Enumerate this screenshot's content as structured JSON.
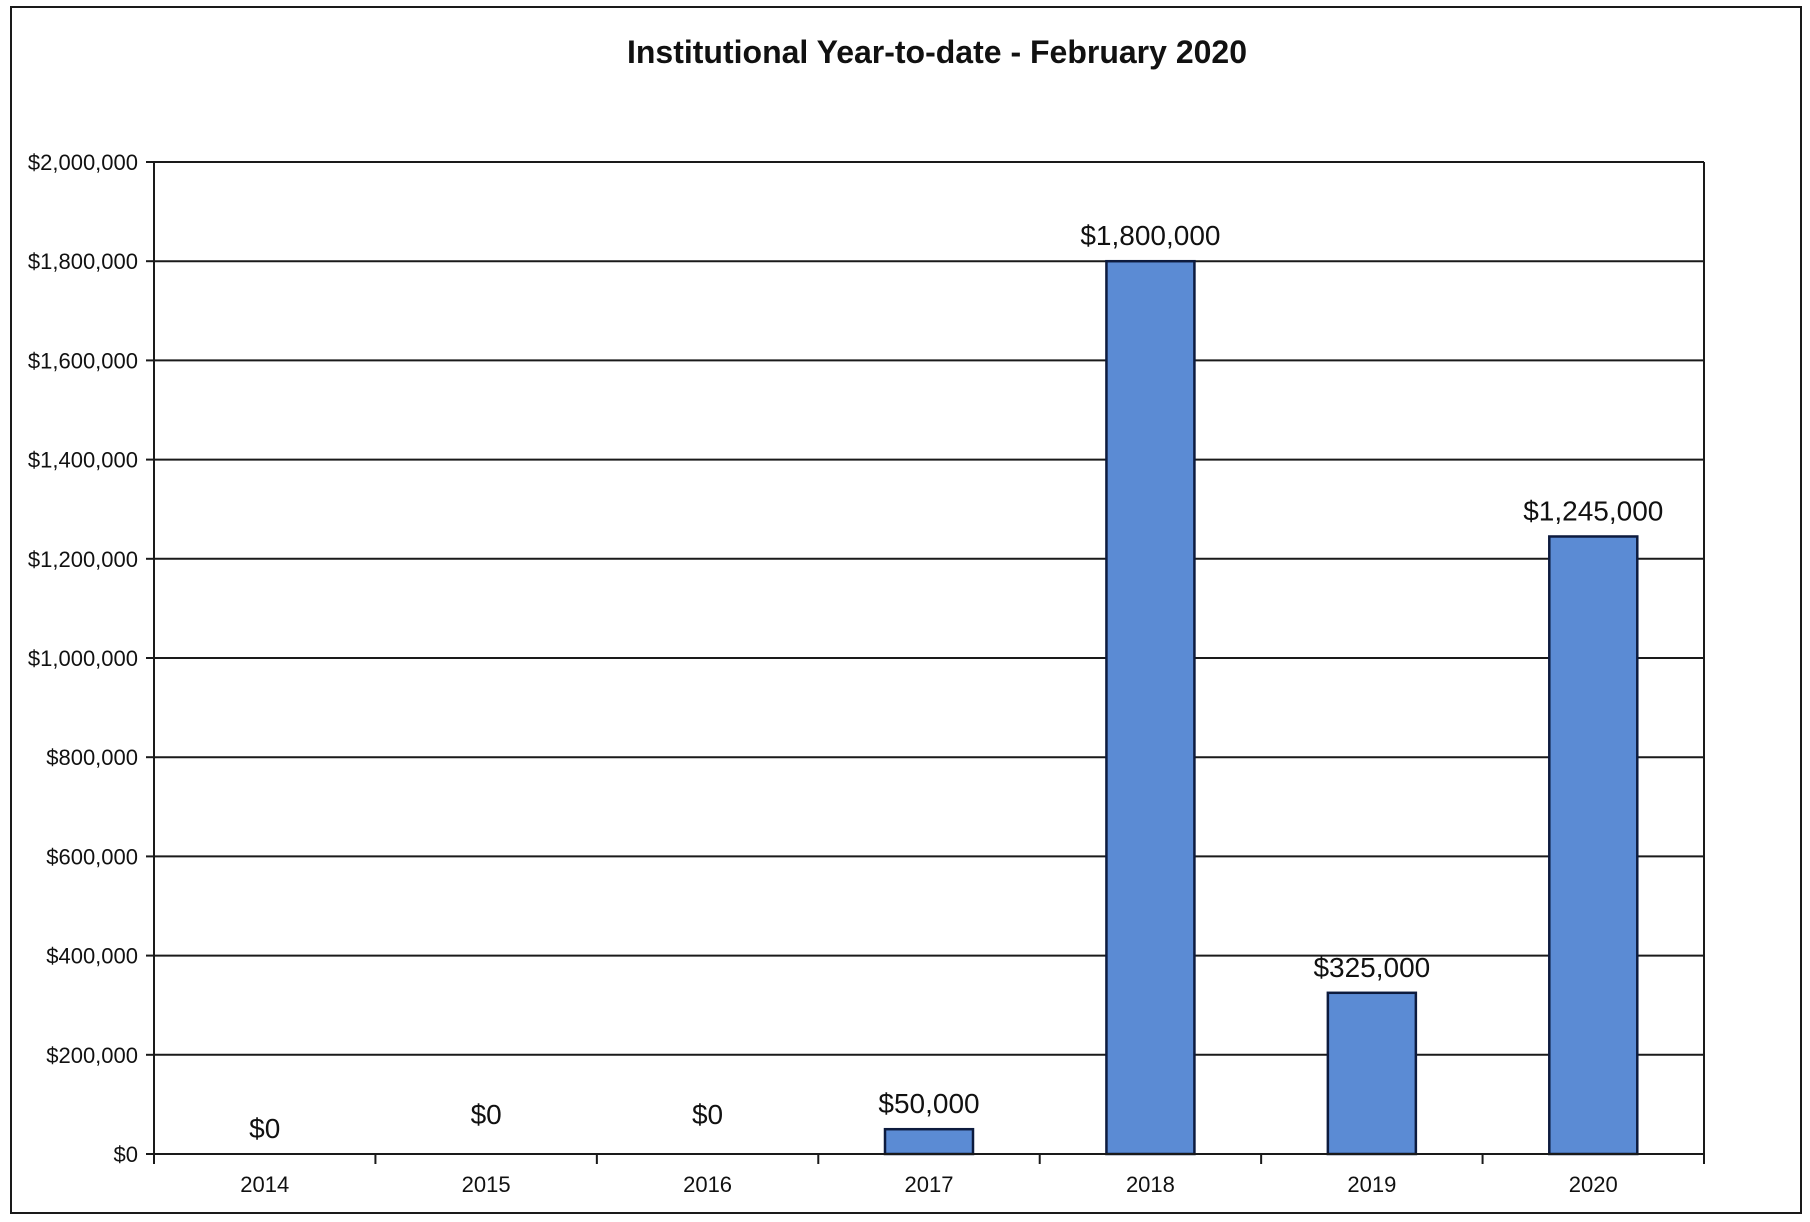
{
  "chart_data": {
    "type": "bar",
    "title": "Institutional Year-to-date - February 2020",
    "xlabel": "",
    "ylabel": "",
    "categories": [
      "2014",
      "2015",
      "2016",
      "2017",
      "2018",
      "2019",
      "2020"
    ],
    "values": [
      0,
      0,
      0,
      50000,
      1800000,
      325000,
      1245000
    ],
    "data_labels": [
      "$0",
      "$0",
      "$0",
      "$50,000",
      "$1,800,000",
      "$325,000",
      "$1,245,000"
    ],
    "ylim": [
      0,
      2000000
    ],
    "y_ticks": [
      0,
      200000,
      400000,
      600000,
      800000,
      1000000,
      1200000,
      1400000,
      1600000,
      1800000,
      2000000
    ],
    "y_tick_labels": [
      "$0",
      "$200,000",
      "$400,000",
      "$600,000",
      "$800,000",
      "$1,000,000",
      "$1,200,000",
      "$1,400,000",
      "$1,600,000",
      "$1,800,000",
      "$2,000,000"
    ],
    "grid": true,
    "legend": "none",
    "colors": {
      "bar_fill": "#5b8bd4",
      "bar_stroke": "#0d1b3e",
      "gridline": "#1a1a1a",
      "axis": "#1a1a1a"
    }
  }
}
